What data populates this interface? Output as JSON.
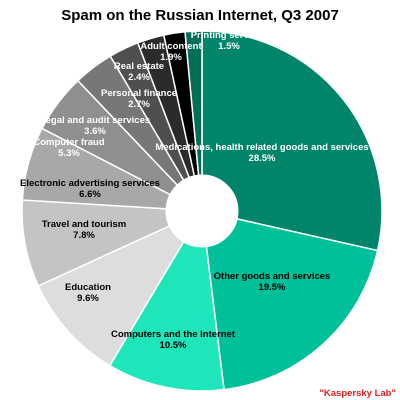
{
  "chart_data": {
    "type": "pie",
    "variant": "donut",
    "title": "Spam on the Russian Internet, Q3 2007",
    "unit": "%",
    "slices": [
      {
        "label": "Medications, health related goods and services",
        "value": 28.5,
        "display": "28.5%",
        "color": "#00846a",
        "label_color": "#ffffff"
      },
      {
        "label": "Other goods and services",
        "value": 19.5,
        "display": "19.5%",
        "color": "#00c09a",
        "label_color": "#000000"
      },
      {
        "label": "Computers and the Internet",
        "value": 10.5,
        "display": "10.5%",
        "color": "#1ee6ba",
        "label_color": "#000000"
      },
      {
        "label": "Education",
        "value": 9.6,
        "display": "9.6%",
        "color": "#dddddd",
        "label_color": "#000000"
      },
      {
        "label": "Travel and tourism",
        "value": 7.8,
        "display": "7.8%",
        "color": "#c4c4c4",
        "label_color": "#000000"
      },
      {
        "label": "Electronic advertising services",
        "value": 6.6,
        "display": "6.6%",
        "color": "#a8a8a8",
        "label_color": "#000000"
      },
      {
        "label": "Computer fraud",
        "value": 5.3,
        "display": "5.3%",
        "color": "#8f8f8f",
        "label_color": "#ffffff"
      },
      {
        "label": "Legal and audit services",
        "value": 3.6,
        "display": "3.6%",
        "color": "#777777",
        "label_color": "#ffffff"
      },
      {
        "label": "Personal finance",
        "value": 2.7,
        "display": "2.7%",
        "color": "#4f4f4f",
        "label_color": "#ffffff"
      },
      {
        "label": "Real estate",
        "value": 2.4,
        "display": "2.4%",
        "color": "#2b2b2b",
        "label_color": "#ffffff"
      },
      {
        "label": "Adult content",
        "value": 1.9,
        "display": "1.9%",
        "color": "#000000",
        "label_color": "#ffffff"
      },
      {
        "label": "Printing services",
        "value": 1.5,
        "display": "1.5%",
        "color": "#006e58",
        "label_color": "#ffffff"
      }
    ]
  },
  "credit": "\"Kaspersky Lab\""
}
